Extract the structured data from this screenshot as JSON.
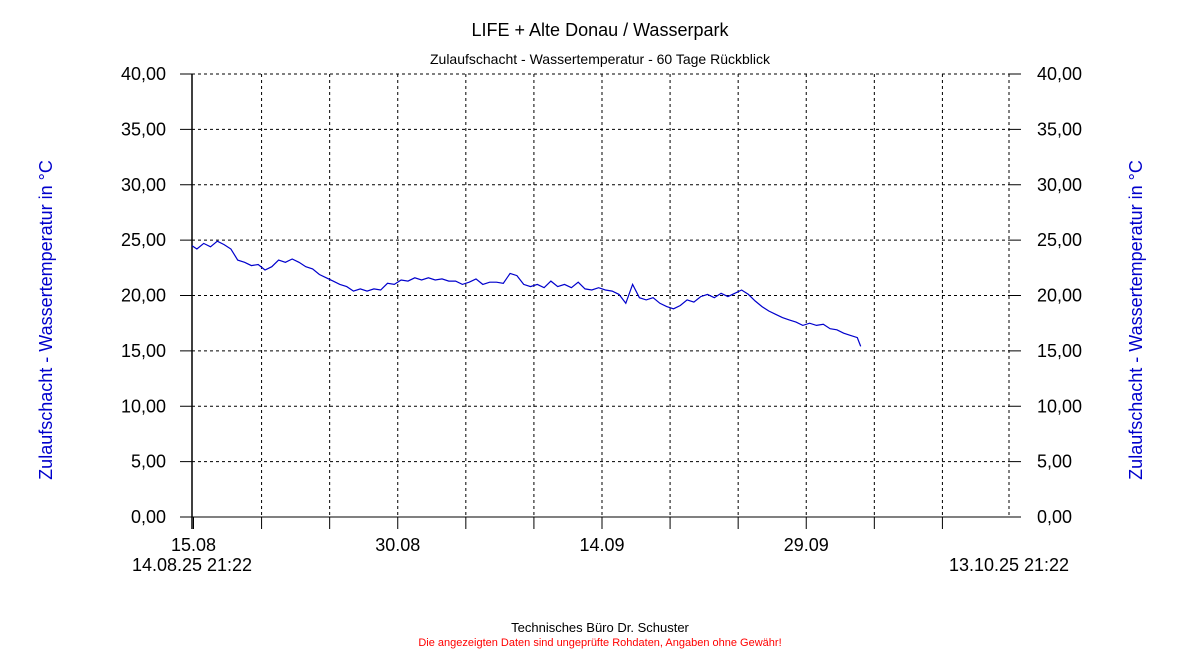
{
  "colors": {
    "series": "#0000cc",
    "footer_note": "#ff0000",
    "axis": "#000000",
    "grid": "#000000"
  },
  "chart_data": {
    "type": "line",
    "title": "LIFE + Alte Donau / Wasserpark",
    "subtitle": "Zulaufschacht - Wassertemperatur - 60 Tage Rückblick",
    "ylabel_left": "Zulaufschacht - Wassertemperatur in °C",
    "ylabel_right": "Zulaufschacht - Wassertemperatur in °C",
    "ylim": [
      0,
      40
    ],
    "yticks": [
      "0,00",
      "5,00",
      "10,00",
      "15,00",
      "20,00",
      "25,00",
      "30,00",
      "35,00",
      "40,00"
    ],
    "x_start": "14.08.25 21:22",
    "x_end": "13.10.25 21:22",
    "x_start_label": "14.08.25 21:22",
    "x_end_label": "13.10.25 21:22",
    "x_tick_labels": [
      {
        "date": "2025-08-15",
        "label": "15.08"
      },
      {
        "date": "2025-08-30",
        "label": "30.08"
      },
      {
        "date": "2025-09-14",
        "label": "14.09"
      },
      {
        "date": "2025-09-29",
        "label": "29.09"
      }
    ],
    "grid": true,
    "series": [
      {
        "points": [
          [
            "2025-08-14 21:22",
            24.5
          ],
          [
            "2025-08-15 06:00",
            24.2
          ],
          [
            "2025-08-15 18:00",
            24.7
          ],
          [
            "2025-08-16 06:00",
            24.4
          ],
          [
            "2025-08-16 18:00",
            24.9
          ],
          [
            "2025-08-17 06:00",
            24.6
          ],
          [
            "2025-08-17 18:00",
            24.2
          ],
          [
            "2025-08-18 06:00",
            23.2
          ],
          [
            "2025-08-18 18:00",
            23.0
          ],
          [
            "2025-08-19 06:00",
            22.7
          ],
          [
            "2025-08-19 18:00",
            22.8
          ],
          [
            "2025-08-20 06:00",
            22.3
          ],
          [
            "2025-08-20 18:00",
            22.6
          ],
          [
            "2025-08-21 06:00",
            23.2
          ],
          [
            "2025-08-21 18:00",
            23.0
          ],
          [
            "2025-08-22 06:00",
            23.3
          ],
          [
            "2025-08-22 18:00",
            23.0
          ],
          [
            "2025-08-23 06:00",
            22.6
          ],
          [
            "2025-08-23 18:00",
            22.4
          ],
          [
            "2025-08-24 06:00",
            21.9
          ],
          [
            "2025-08-24 18:00",
            21.6
          ],
          [
            "2025-08-25 06:00",
            21.3
          ],
          [
            "2025-08-25 18:00",
            21.0
          ],
          [
            "2025-08-26 06:00",
            20.8
          ],
          [
            "2025-08-26 18:00",
            20.4
          ],
          [
            "2025-08-27 06:00",
            20.6
          ],
          [
            "2025-08-27 18:00",
            20.4
          ],
          [
            "2025-08-28 06:00",
            20.6
          ],
          [
            "2025-08-28 18:00",
            20.5
          ],
          [
            "2025-08-29 06:00",
            21.1
          ],
          [
            "2025-08-29 18:00",
            21.0
          ],
          [
            "2025-08-30 06:00",
            21.4
          ],
          [
            "2025-08-30 18:00",
            21.3
          ],
          [
            "2025-08-31 06:00",
            21.6
          ],
          [
            "2025-08-31 18:00",
            21.4
          ],
          [
            "2025-09-01 06:00",
            21.6
          ],
          [
            "2025-09-01 18:00",
            21.4
          ],
          [
            "2025-09-02 06:00",
            21.5
          ],
          [
            "2025-09-02 18:00",
            21.3
          ],
          [
            "2025-09-03 06:00",
            21.3
          ],
          [
            "2025-09-03 18:00",
            21.0
          ],
          [
            "2025-09-04 06:00",
            21.2
          ],
          [
            "2025-09-04 18:00",
            21.5
          ],
          [
            "2025-09-05 06:00",
            21.0
          ],
          [
            "2025-09-05 18:00",
            21.2
          ],
          [
            "2025-09-06 06:00",
            21.2
          ],
          [
            "2025-09-06 18:00",
            21.1
          ],
          [
            "2025-09-07 06:00",
            22.0
          ],
          [
            "2025-09-07 18:00",
            21.8
          ],
          [
            "2025-09-08 06:00",
            21.0
          ],
          [
            "2025-09-08 18:00",
            20.8
          ],
          [
            "2025-09-09 06:00",
            21.0
          ],
          [
            "2025-09-09 18:00",
            20.7
          ],
          [
            "2025-09-10 06:00",
            21.3
          ],
          [
            "2025-09-10 18:00",
            20.8
          ],
          [
            "2025-09-11 06:00",
            21.0
          ],
          [
            "2025-09-11 18:00",
            20.7
          ],
          [
            "2025-09-12 06:00",
            21.2
          ],
          [
            "2025-09-12 18:00",
            20.6
          ],
          [
            "2025-09-13 06:00",
            20.5
          ],
          [
            "2025-09-13 18:00",
            20.7
          ],
          [
            "2025-09-14 06:00",
            20.5
          ],
          [
            "2025-09-14 18:00",
            20.4
          ],
          [
            "2025-09-15 06:00",
            20.1
          ],
          [
            "2025-09-15 18:00",
            19.3
          ],
          [
            "2025-09-16 06:00",
            21.0
          ],
          [
            "2025-09-16 18:00",
            19.8
          ],
          [
            "2025-09-17 06:00",
            19.6
          ],
          [
            "2025-09-17 18:00",
            19.8
          ],
          [
            "2025-09-18 06:00",
            19.3
          ],
          [
            "2025-09-18 18:00",
            19.0
          ],
          [
            "2025-09-19 06:00",
            18.8
          ],
          [
            "2025-09-19 18:00",
            19.1
          ],
          [
            "2025-09-20 06:00",
            19.6
          ],
          [
            "2025-09-20 18:00",
            19.4
          ],
          [
            "2025-09-21 06:00",
            19.9
          ],
          [
            "2025-09-21 18:00",
            20.1
          ],
          [
            "2025-09-22 06:00",
            19.8
          ],
          [
            "2025-09-22 18:00",
            20.2
          ],
          [
            "2025-09-23 06:00",
            19.9
          ],
          [
            "2025-09-23 18:00",
            20.2
          ],
          [
            "2025-09-24 06:00",
            20.5
          ],
          [
            "2025-09-24 18:00",
            20.1
          ],
          [
            "2025-09-25 06:00",
            19.5
          ],
          [
            "2025-09-25 18:00",
            19.0
          ],
          [
            "2025-09-26 06:00",
            18.6
          ],
          [
            "2025-09-26 18:00",
            18.3
          ],
          [
            "2025-09-27 06:00",
            18.0
          ],
          [
            "2025-09-27 18:00",
            17.8
          ],
          [
            "2025-09-28 06:00",
            17.6
          ],
          [
            "2025-09-28 18:00",
            17.3
          ],
          [
            "2025-09-29 06:00",
            17.5
          ],
          [
            "2025-09-29 18:00",
            17.3
          ],
          [
            "2025-09-30 06:00",
            17.4
          ],
          [
            "2025-09-30 18:00",
            17.0
          ],
          [
            "2025-10-01 06:00",
            16.9
          ],
          [
            "2025-10-01 18:00",
            16.6
          ],
          [
            "2025-10-02 06:00",
            16.4
          ],
          [
            "2025-10-02 18:00",
            16.2
          ],
          [
            "2025-10-03 00:00",
            15.4
          ]
        ]
      }
    ]
  },
  "footer": {
    "credit": "Technisches Büro Dr. Schuster",
    "disclaimer": "Die angezeigten Daten sind ungeprüfte Rohdaten, Angaben ohne Gewähr!"
  }
}
